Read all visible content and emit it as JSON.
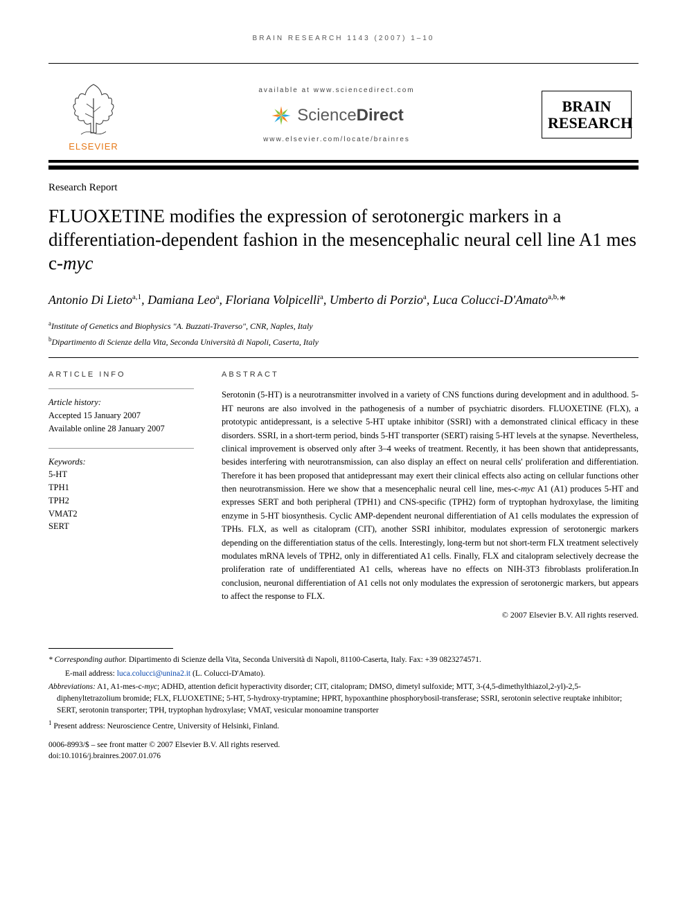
{
  "running_head": "BRAIN RESEARCH 1143 (2007) 1–10",
  "header": {
    "available_at": "available at www.sciencedirect.com",
    "sd_word_light": "Science",
    "sd_word_bold": "Direct",
    "locate": "www.elsevier.com/locate/brainres",
    "publisher_name": "ELSEVIER",
    "journal_line1": "BRAIN",
    "journal_line2": "RESEARCH"
  },
  "article": {
    "type": "Research Report",
    "title_pre": "FLUOXETINE modifies the expression of serotonergic markers in a differentiation-dependent fashion in the mesencephalic neural cell line A1 mes c-",
    "title_ital": "myc",
    "authors_html": "Antonio Di Lieto<sup>a,1</sup>, Damiana Leo<sup>a</sup>, Floriana Volpicelli<sup>a</sup>, Umberto di Porzio<sup>a</sup>, Luca Colucci-D'Amato<sup>a,b,</sup>*"
  },
  "affiliations": [
    {
      "sup": "a",
      "text": "Institute of Genetics and Biophysics \"A. Buzzati-Traverso\", CNR, Naples, Italy"
    },
    {
      "sup": "b",
      "text": "Dipartimento di Scienze della Vita, Seconda Università di Napoli, Caserta, Italy"
    }
  ],
  "info": {
    "section_head": "ARTICLE INFO",
    "history_label": "Article history:",
    "accepted": "Accepted 15 January 2007",
    "online": "Available online 28 January 2007",
    "keywords_label": "Keywords:",
    "keywords": [
      "5-HT",
      "TPH1",
      "TPH2",
      "VMAT2",
      "SERT"
    ]
  },
  "abstract": {
    "section_head": "ABSTRACT",
    "text": "Serotonin (5-HT) is a neurotransmitter involved in a variety of CNS functions during development and in adulthood. 5-HT neurons are also involved in the pathogenesis of a number of psychiatric disorders. FLUOXETINE (FLX), a prototypic antidepressant, is a selective 5-HT uptake inhibitor (SSRI) with a demonstrated clinical efficacy in these disorders. SSRI, in a short-term period, binds 5-HT transporter (SERT) raising 5-HT levels at the synapse. Nevertheless, clinical improvement is observed only after 3–4 weeks of treatment. Recently, it has been shown that antidepressants, besides interfering with neurotransmission, can also display an effect on neural cells' proliferation and differentiation. Therefore it has been proposed that antidepressant may exert their clinical effects also acting on cellular functions other then neurotransmission. Here we show that a mesencephalic neural cell line, mes-c-myc A1 (A1) produces 5-HT and expresses SERT and both peripheral (TPH1) and CNS-specific (TPH2) form of tryptophan hydroxylase, the limiting enzyme in 5-HT biosynthesis. Cyclic AMP-dependent neuronal differentiation of A1 cells modulates the expression of TPHs. FLX, as well as citalopram (CIT), another SSRI inhibitor, modulates expression of serotonergic markers depending on the differentiation status of the cells. Interestingly, long-term but not short-term FLX treatment selectively modulates mRNA levels of TPH2, only in differentiated A1 cells. Finally, FLX and citalopram selectively decrease the proliferation rate of undifferentiated A1 cells, whereas have no effects on NIH-3T3 fibroblasts proliferation.In conclusion, neuronal differentiation of A1 cells not only modulates the expression of serotonergic markers, but appears to affect the response to FLX.",
    "copyright": "© 2007 Elsevier B.V. All rights reserved."
  },
  "footnotes": {
    "corresponding_label": "* Corresponding author.",
    "corresponding_text": " Dipartimento di Scienze della Vita, Seconda Università di Napoli, 81100-Caserta, Italy. Fax: +39 0823274571.",
    "email_label": "E-mail address: ",
    "email": "luca.colucci@unina2.it",
    "email_tail": " (L. Colucci-D'Amato).",
    "abbrev_label": "Abbreviations:",
    "abbrev_text": " A1, A1-mes-c-myc; ADHD, attention deficit hyperactivity disorder; CIT, citalopram; DMSO, dimetyl sulfoxide; MTT, 3-(4,5-dimethylthiazol,2-yl)-2,5-diphenyltetrazolium bromide; FLX, FLUOXETINE; 5-HT, 5-hydroxy-tryptamine; HPRT, hypoxanthine phosphorybosil-transferase; SSRI, serotonin selective reuptake inhibitor; SERT, serotonin transporter; TPH, tryptophan hydroxylase; VMAT, vesicular monoamine transporter",
    "present_addr_sup": "1",
    "present_addr": " Present address: Neuroscience Centre, University of Helsinki, Finland."
  },
  "doi": {
    "front_matter": "0006-8993/$ – see front matter © 2007 Elsevier B.V. All rights reserved.",
    "doi": "doi:10.1016/j.brainres.2007.01.076"
  },
  "colors": {
    "elsevier_orange": "#e67817",
    "sd_orange": "#f58220",
    "sd_green": "#8bc53f",
    "sd_blue": "#26a9e0",
    "link_blue": "#0645ad"
  }
}
